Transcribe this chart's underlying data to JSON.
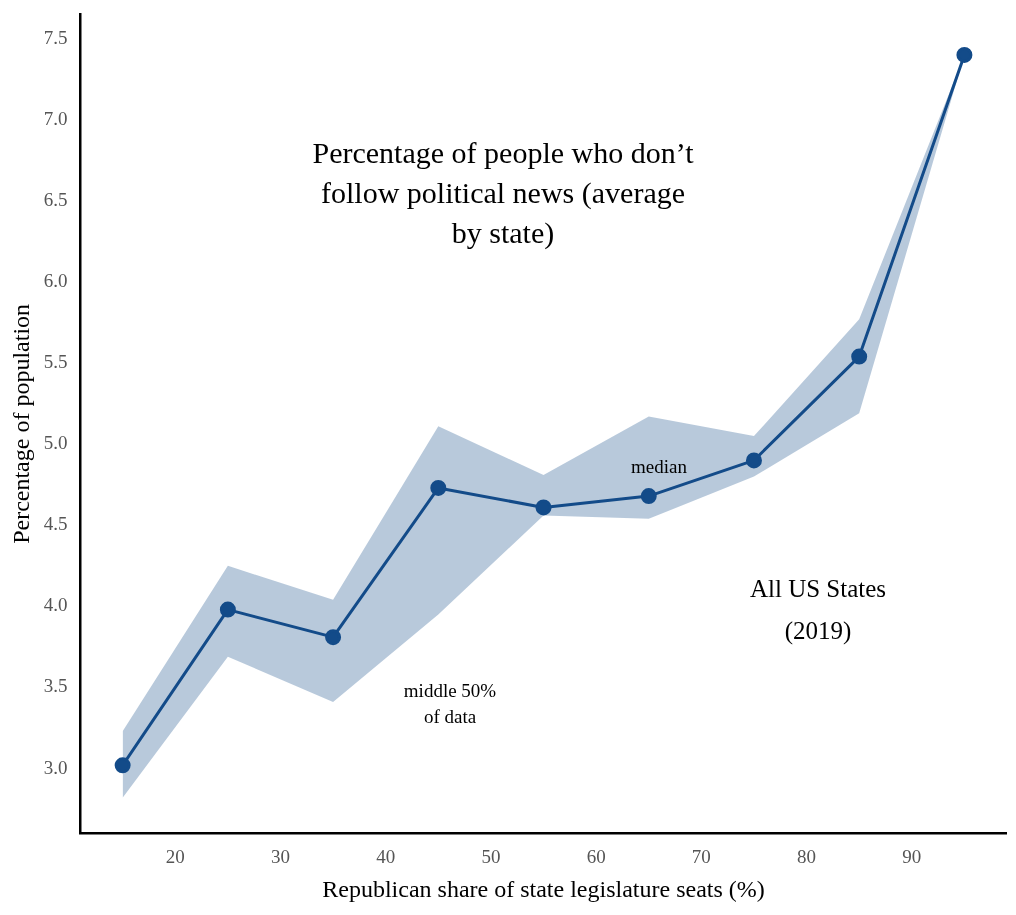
{
  "chart_data": {
    "type": "line",
    "title": "Percentage of people who don’t follow political news (average by state)",
    "xlabel": "Republican share of state legislature seats (%)",
    "ylabel": "Percentage of population",
    "x": [
      15,
      25,
      35,
      45,
      55,
      65,
      75,
      85,
      95
    ],
    "series": [
      {
        "color": "#134b89",
        "values": [
          3.02,
          3.98,
          3.81,
          4.73,
          4.61,
          4.68,
          4.9,
          5.54,
          7.4
        ],
        "lower": [
          2.82,
          3.69,
          3.41,
          3.95,
          4.56,
          4.54,
          4.8,
          5.19,
          7.4
        ],
        "upper": [
          3.23,
          4.25,
          4.04,
          5.11,
          4.81,
          5.17,
          5.05,
          5.77,
          7.4
        ]
      }
    ],
    "xlim": [
      11,
      99
    ],
    "xticks": [
      20,
      30,
      40,
      50,
      60,
      70,
      80,
      90
    ],
    "ylim": [
      2.6,
      7.65
    ],
    "yticks": [
      {
        "value": 3,
        "label": "3.0"
      },
      3.5,
      {
        "value": 4,
        "label": "4.0"
      },
      4.5,
      {
        "value": 5,
        "label": "5.0"
      },
      5.5,
      {
        "value": 6,
        "label": "6.0"
      },
      6.5,
      {
        "value": 7,
        "label": "7.0"
      },
      7.5
    ],
    "marker": "circle",
    "line_style": "solid",
    "grid": false,
    "legend": false,
    "annotations": [
      "median",
      "middle 50% of data",
      "All US States (2019)"
    ]
  }
}
